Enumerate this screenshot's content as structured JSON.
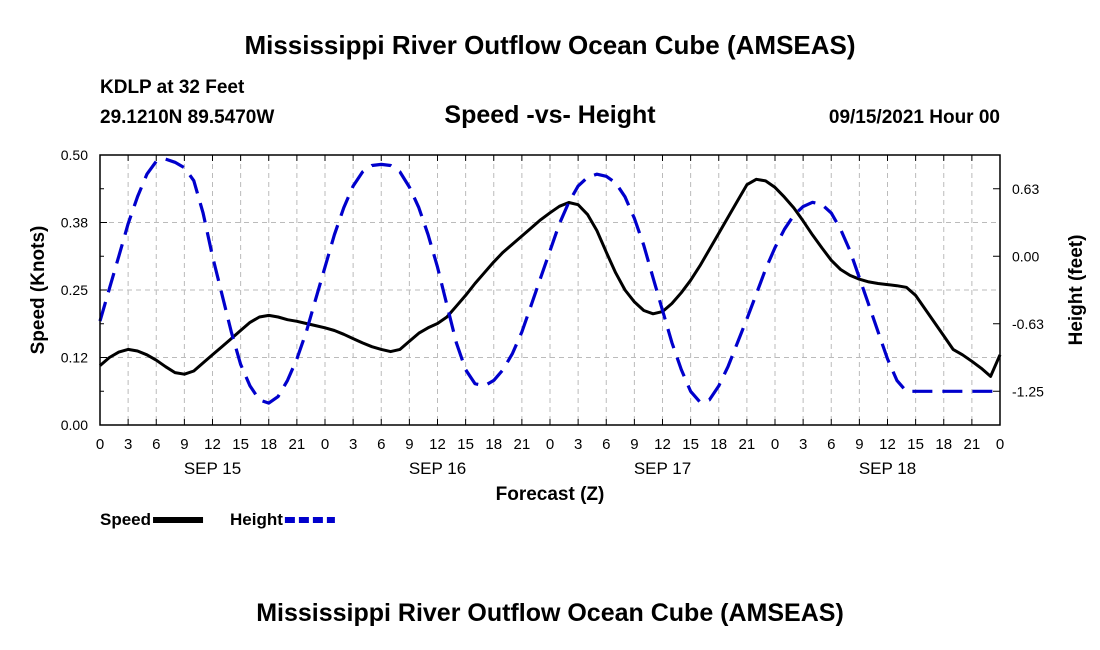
{
  "header": {
    "title": "Mississippi River Outflow Ocean Cube (AMSEAS)",
    "station": "KDLP at 32 Feet",
    "coords": "29.1210N  89.5470W",
    "date": "09/15/2021 Hour 00",
    "footer_title": "Mississippi River Outflow Ocean Cube (AMSEAS)"
  },
  "colors": {
    "speed": "#000000",
    "height": "#0000cc",
    "grid": "#bbbbbb"
  },
  "chart_data": {
    "type": "line",
    "title": "Speed -vs- Height",
    "xlabel": "Forecast (Z)",
    "ylabel_left": "Speed (Knots)",
    "ylabel_right": "Height (feet)",
    "x_range": [
      0,
      96
    ],
    "y_left_range": [
      0,
      0.5
    ],
    "y_right_range": [
      -1.5625,
      0.9375
    ],
    "x_tick_labels": [
      "0",
      "3",
      "6",
      "9",
      "12",
      "15",
      "18",
      "21",
      "0",
      "3",
      "6",
      "9",
      "12",
      "15",
      "18",
      "21",
      "0",
      "3",
      "6",
      "9",
      "12",
      "15",
      "18",
      "21",
      "0",
      "3",
      "6",
      "9",
      "12",
      "15",
      "18",
      "21",
      "0"
    ],
    "y_left_ticks": [
      {
        "value": 0.0,
        "label": "0.00"
      },
      {
        "value": 0.125,
        "label": "0.12"
      },
      {
        "value": 0.25,
        "label": "0.25"
      },
      {
        "value": 0.375,
        "label": "0.38"
      },
      {
        "value": 0.5,
        "label": "0.50"
      }
    ],
    "y_right_ticks": [
      {
        "value": 0.625,
        "label": "0.63"
      },
      {
        "value": 0.0,
        "label": "0.00"
      },
      {
        "value": -0.625,
        "label": "-0.63"
      },
      {
        "value": -1.25,
        "label": "-1.25"
      }
    ],
    "day_labels": [
      {
        "x": 12,
        "label": "SEP 15"
      },
      {
        "x": 36,
        "label": "SEP 16"
      },
      {
        "x": 60,
        "label": "SEP 17"
      },
      {
        "x": 84,
        "label": "SEP 18"
      }
    ],
    "series": [
      {
        "name": "Speed",
        "axis": "left",
        "style": "solid",
        "x": [
          0,
          1,
          2,
          3,
          4,
          5,
          6,
          7,
          8,
          9,
          10,
          11,
          12,
          13,
          14,
          15,
          16,
          17,
          18,
          19,
          20,
          21,
          22,
          23,
          24,
          25,
          26,
          27,
          28,
          29,
          30,
          31,
          32,
          33,
          34,
          35,
          36,
          37,
          38,
          39,
          40,
          41,
          42,
          43,
          44,
          45,
          46,
          47,
          48,
          49,
          50,
          51,
          52,
          53,
          54,
          55,
          56,
          57,
          58,
          59,
          60,
          61,
          62,
          63,
          64,
          65,
          66,
          67,
          68,
          69,
          70,
          71,
          72,
          73,
          74,
          75,
          76,
          77,
          78,
          79,
          80,
          81,
          82,
          83,
          84,
          85,
          86,
          87,
          88,
          89,
          90,
          91,
          92,
          93,
          94,
          95,
          96
        ],
        "values": [
          0.11,
          0.125,
          0.135,
          0.14,
          0.137,
          0.13,
          0.12,
          0.108,
          0.097,
          0.094,
          0.1,
          0.115,
          0.13,
          0.145,
          0.16,
          0.175,
          0.19,
          0.2,
          0.203,
          0.2,
          0.195,
          0.192,
          0.188,
          0.184,
          0.18,
          0.175,
          0.168,
          0.16,
          0.152,
          0.145,
          0.14,
          0.136,
          0.14,
          0.155,
          0.17,
          0.18,
          0.188,
          0.2,
          0.22,
          0.24,
          0.262,
          0.282,
          0.302,
          0.32,
          0.335,
          0.35,
          0.365,
          0.38,
          0.393,
          0.405,
          0.412,
          0.408,
          0.39,
          0.36,
          0.32,
          0.282,
          0.25,
          0.228,
          0.212,
          0.206,
          0.21,
          0.225,
          0.245,
          0.268,
          0.295,
          0.325,
          0.355,
          0.385,
          0.415,
          0.445,
          0.455,
          0.452,
          0.44,
          0.422,
          0.402,
          0.378,
          0.352,
          0.328,
          0.305,
          0.288,
          0.277,
          0.27,
          0.265,
          0.262,
          0.26,
          0.258,
          0.255,
          0.24,
          0.215,
          0.19,
          0.165,
          0.14,
          0.13,
          0.118,
          0.105,
          0.09,
          0.13
        ]
      },
      {
        "name": "Height",
        "axis": "right",
        "style": "dashed",
        "x": [
          0,
          1,
          2,
          3,
          4,
          5,
          6,
          7,
          8,
          9,
          10,
          11,
          12,
          13,
          14,
          15,
          16,
          17,
          18,
          19,
          20,
          21,
          22,
          23,
          24,
          25,
          26,
          27,
          28,
          29,
          30,
          31,
          32,
          33,
          34,
          35,
          36,
          37,
          38,
          39,
          40,
          41,
          42,
          43,
          44,
          45,
          46,
          47,
          48,
          49,
          50,
          51,
          52,
          53,
          54,
          55,
          56,
          57,
          58,
          59,
          60,
          61,
          62,
          63,
          64,
          65,
          66,
          67,
          68,
          69,
          70,
          71,
          72,
          73,
          74,
          75,
          76,
          77,
          78,
          79,
          80,
          81,
          82,
          83,
          84,
          85,
          86,
          87,
          88,
          89,
          90,
          91,
          92,
          93,
          94,
          95,
          96
        ],
        "values": [
          -0.6,
          -0.3,
          0.0,
          0.3,
          0.55,
          0.76,
          0.88,
          0.9,
          0.87,
          0.82,
          0.7,
          0.4,
          0.0,
          -0.35,
          -0.7,
          -1.0,
          -1.2,
          -1.33,
          -1.36,
          -1.3,
          -1.15,
          -0.95,
          -0.7,
          -0.4,
          -0.1,
          0.2,
          0.45,
          0.65,
          0.78,
          0.84,
          0.85,
          0.84,
          0.78,
          0.64,
          0.45,
          0.2,
          -0.1,
          -0.45,
          -0.8,
          -1.05,
          -1.18,
          -1.2,
          -1.15,
          -1.05,
          -0.9,
          -0.7,
          -0.45,
          -0.2,
          0.05,
          0.3,
          0.5,
          0.65,
          0.73,
          0.76,
          0.74,
          0.68,
          0.55,
          0.35,
          0.1,
          -0.2,
          -0.5,
          -0.8,
          -1.05,
          -1.25,
          -1.35,
          -1.33,
          -1.2,
          -1.02,
          -0.8,
          -0.58,
          -0.35,
          -0.12,
          0.08,
          0.25,
          0.38,
          0.46,
          0.5,
          0.48,
          0.4,
          0.25,
          0.05,
          -0.2,
          -0.45,
          -0.7,
          -0.95,
          -1.15,
          -1.25,
          -1.25,
          -1.25,
          -1.25,
          -1.25,
          -1.25,
          -1.25,
          -1.25,
          -1.25,
          -1.25,
          -1.25
        ]
      }
    ],
    "legend": [
      {
        "name": "Speed",
        "style": "solid"
      },
      {
        "name": "Height",
        "style": "dashed"
      }
    ],
    "grid": true
  }
}
